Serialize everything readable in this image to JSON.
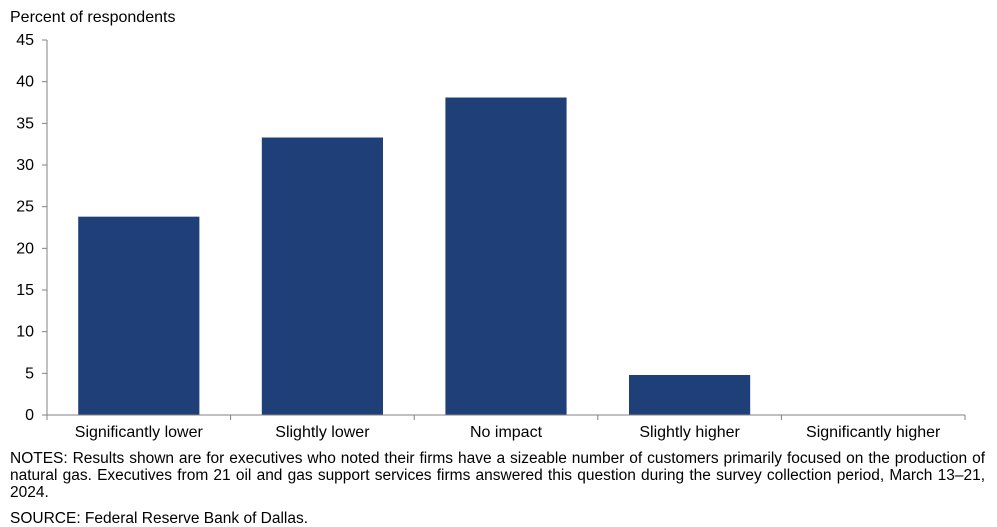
{
  "chart_data": {
    "type": "bar",
    "ylabel": "Percent of respondents",
    "xlabel": "",
    "title": "",
    "categories": [
      "Significantly lower",
      "Slightly lower",
      "No impact",
      "Slightly higher",
      "Significantly higher"
    ],
    "values": [
      23.8,
      33.3,
      38.1,
      4.8,
      0
    ],
    "ylim": [
      0,
      45
    ],
    "yticks": [
      0,
      5,
      10,
      15,
      20,
      25,
      30,
      35,
      40,
      45
    ],
    "grid": false,
    "legend": "none",
    "bar_color": "#1f3f79"
  },
  "notes": "NOTES: Results shown are for executives who noted their firms have a sizeable number of customers primarily focused on the production of natural gas. Executives from 21 oil and gas support services firms answered this question during the survey collection period, March 13–21, 2024.",
  "source": "SOURCE: Federal Reserve Bank of Dallas."
}
